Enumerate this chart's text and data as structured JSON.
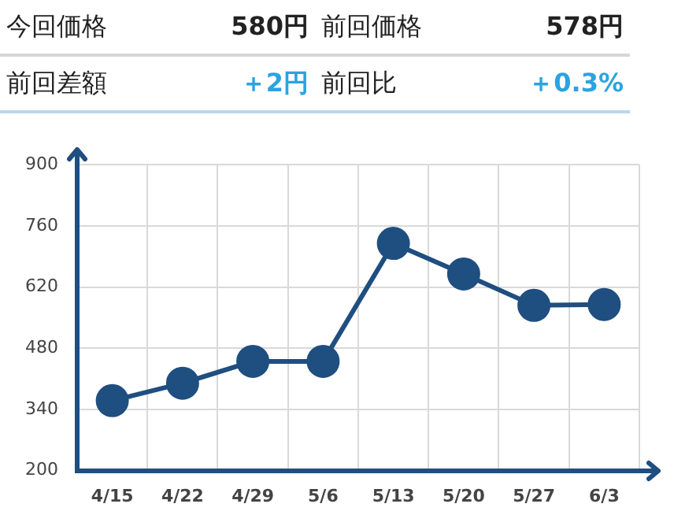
{
  "chart_data": [
    {
      "type": "other",
      "annotations": [
        "今回価格",
        "580円",
        "前回価格",
        "578円",
        "前回差額",
        "＋2円",
        "前回比",
        "＋0.3%"
      ]
    },
    {
      "type": "line",
      "categories": [
        "4/15",
        "4/22",
        "4/29",
        "5/6",
        "5/13",
        "5/20",
        "5/27",
        "6/3"
      ],
      "values": [
        360,
        400,
        450,
        450,
        720,
        650,
        578,
        580
      ],
      "color": "#1f4e80",
      "ylim": [
        200,
        900
      ],
      "yticks": [
        200,
        340,
        480,
        620,
        760,
        900
      ],
      "grid": true,
      "marker": "circle"
    }
  ]
}
